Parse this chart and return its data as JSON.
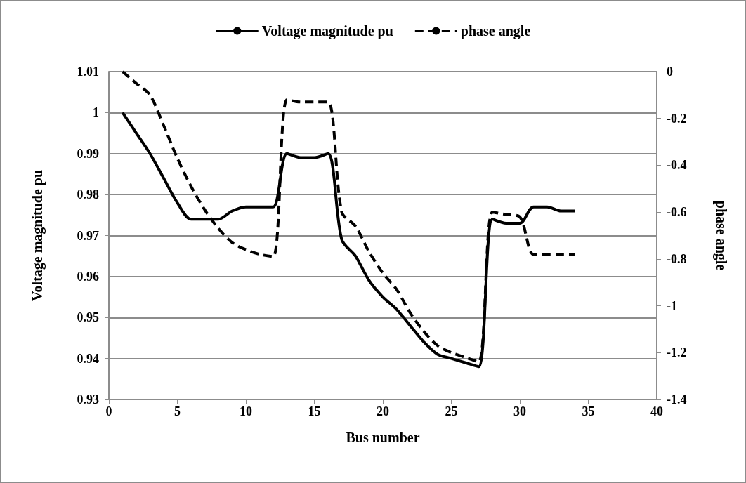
{
  "chart_data": {
    "type": "line",
    "xlabel": "Bus number",
    "ylabel": "Voltage magnitude pu",
    "y2label": "phase angle",
    "x": [
      1,
      2,
      3,
      4,
      5,
      6,
      7,
      8,
      9,
      10,
      11,
      12,
      13,
      14,
      15,
      16,
      17,
      18,
      19,
      20,
      21,
      22,
      23,
      24,
      25,
      26,
      27,
      28,
      29,
      30,
      31,
      32,
      33,
      34
    ],
    "series": [
      {
        "name": "Voltage magnitude pu",
        "color": "#000000",
        "line_style": "solid",
        "values": [
          1.0,
          0.995,
          0.99,
          0.984,
          0.978,
          0.974,
          0.974,
          0.974,
          0.976,
          0.977,
          0.977,
          0.977,
          0.99,
          0.989,
          0.989,
          0.99,
          0.969,
          0.965,
          0.959,
          0.955,
          0.952,
          0.948,
          0.944,
          0.941,
          0.94,
          0.939,
          0.938,
          0.974,
          0.973,
          0.973,
          0.977,
          0.977,
          0.976,
          0.976
        ]
      },
      {
        "name": "phase angle",
        "color": "#000000",
        "line_style": "dashed",
        "axis": "y2",
        "values": [
          0,
          -0.05,
          -0.1,
          -0.23,
          -0.37,
          -0.49,
          -0.59,
          -0.67,
          -0.73,
          -0.76,
          -0.78,
          -0.79,
          -0.12,
          -0.13,
          -0.13,
          -0.13,
          -0.6,
          -0.66,
          -0.77,
          -0.86,
          -0.93,
          -1.03,
          -1.11,
          -1.17,
          -1.2,
          -1.22,
          -1.24,
          -0.6,
          -0.61,
          -0.62,
          -0.78,
          -0.78,
          -0.78,
          -0.78
        ]
      }
    ],
    "xlim": [
      0,
      40
    ],
    "xticks": [
      0,
      5,
      10,
      15,
      20,
      25,
      30,
      35,
      40
    ],
    "ylim": [
      0.93,
      1.01
    ],
    "yticks": [
      0.93,
      0.94,
      0.95,
      0.96,
      0.97,
      0.98,
      0.99,
      1,
      1.01
    ],
    "y2lim": [
      -1.4,
      0
    ],
    "y2ticks": [
      -1.4,
      -1.2,
      -1,
      -0.8,
      -0.6,
      -0.4,
      -0.2,
      0
    ],
    "grid": "y",
    "legend": "top"
  }
}
